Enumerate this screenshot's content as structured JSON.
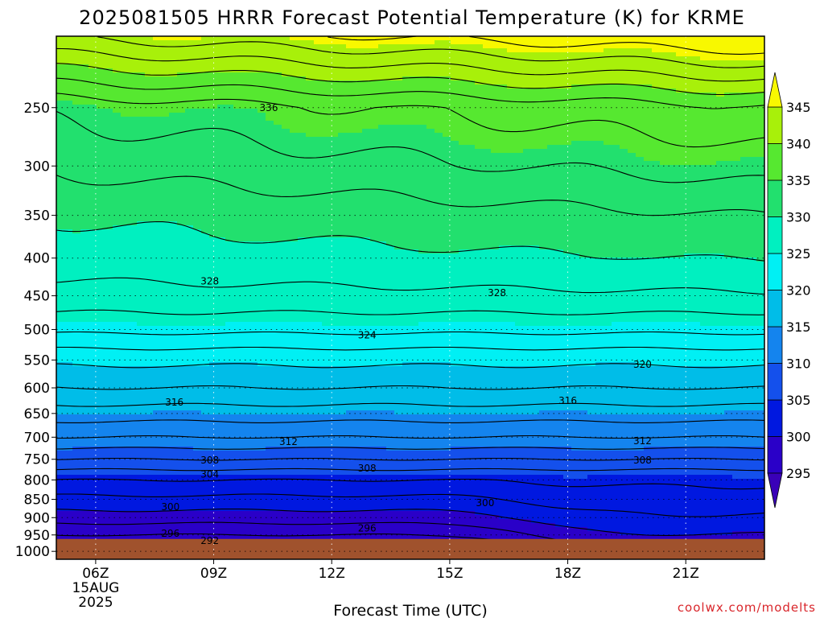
{
  "title": "2025081505 HRRR Forecast Potential Temperature (K) for KRME",
  "credit": "coolwx.com/modelts",
  "chart_data": {
    "type": "contour-fill",
    "title": "2025081505 HRRR Forecast Potential Temperature (K) for KRME",
    "xlabel": "Forecast Time (UTC)",
    "ylabel": "",
    "x_ticks": [
      {
        "hour": 6,
        "label": "06Z",
        "date": "15AUG",
        "year": "2025"
      },
      {
        "hour": 9,
        "label": "09Z"
      },
      {
        "hour": 12,
        "label": "12Z"
      },
      {
        "hour": 15,
        "label": "15Z"
      },
      {
        "hour": 18,
        "label": "18Z"
      },
      {
        "hour": 21,
        "label": "21Z"
      }
    ],
    "xlim": [
      5,
      23
    ],
    "y_ticks": [
      250,
      300,
      350,
      400,
      450,
      500,
      550,
      600,
      650,
      700,
      750,
      800,
      850,
      900,
      950,
      1000
    ],
    "ylim_hPa": [
      200,
      1025
    ],
    "y_scale": "log (pressure)",
    "grid": true,
    "colorbar": {
      "levels": [
        295,
        300,
        305,
        310,
        315,
        320,
        325,
        330,
        335,
        340,
        345
      ],
      "colors": [
        "#2a00c8",
        "#0018e0",
        "#1450ec",
        "#1484ee",
        "#00bde8",
        "#00f0f4",
        "#00f0c0",
        "#22e06e",
        "#56e830",
        "#a8f00a",
        "#f8f800"
      ],
      "under_color": "#3a00b8",
      "over_color": "#f8f800"
    },
    "ground_color": "#a0522d",
    "ground_pressure_hPa": 962,
    "contour_labels": [
      {
        "value": "336",
        "hour": 10.4,
        "p": 250
      },
      {
        "value": "328",
        "hour": 8.9,
        "p": 430
      },
      {
        "value": "328",
        "hour": 16.2,
        "p": 446
      },
      {
        "value": "324",
        "hour": 12.9,
        "p": 509
      },
      {
        "value": "320",
        "hour": 19.9,
        "p": 558
      },
      {
        "value": "316",
        "hour": 8.0,
        "p": 628
      },
      {
        "value": "316",
        "hour": 18.0,
        "p": 625
      },
      {
        "value": "312",
        "hour": 10.9,
        "p": 710
      },
      {
        "value": "312",
        "hour": 19.9,
        "p": 708
      },
      {
        "value": "308",
        "hour": 8.9,
        "p": 752
      },
      {
        "value": "308",
        "hour": 12.9,
        "p": 772
      },
      {
        "value": "308",
        "hour": 19.9,
        "p": 752
      },
      {
        "value": "304",
        "hour": 8.9,
        "p": 786
      },
      {
        "value": "300",
        "hour": 7.9,
        "p": 871
      },
      {
        "value": "300",
        "hour": 15.9,
        "p": 860
      },
      {
        "value": "296",
        "hour": 7.9,
        "p": 946
      },
      {
        "value": "296",
        "hour": 12.9,
        "p": 930
      },
      {
        "value": "292",
        "hour": 8.9,
        "p": 968
      }
    ]
  }
}
